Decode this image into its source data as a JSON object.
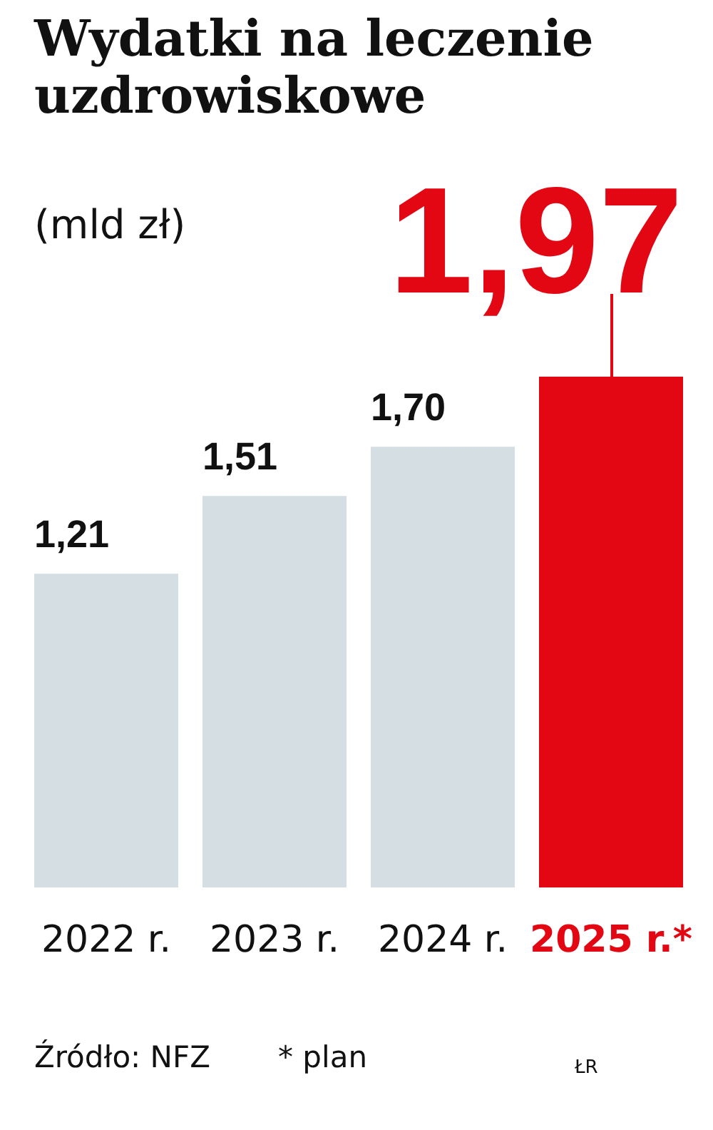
{
  "chart_data": {
    "type": "bar",
    "title": "Wydatki na leczenie uzdrowiskowe",
    "subtitle": "(mld zł)",
    "categories": [
      "2022 r.",
      "2023 r.",
      "2024 r.",
      "2025 r.*"
    ],
    "values": [
      1.21,
      1.51,
      1.7,
      1.97
    ],
    "colors": [
      "#d5dee2",
      "#d5dee2",
      "#d5dee2",
      "#e30613"
    ],
    "value_labels": [
      "1,21",
      "1,51",
      "1,70",
      "1,97"
    ],
    "annotations": [
      "Źródło: NFZ",
      "* plan",
      "ŁR"
    ]
  }
}
